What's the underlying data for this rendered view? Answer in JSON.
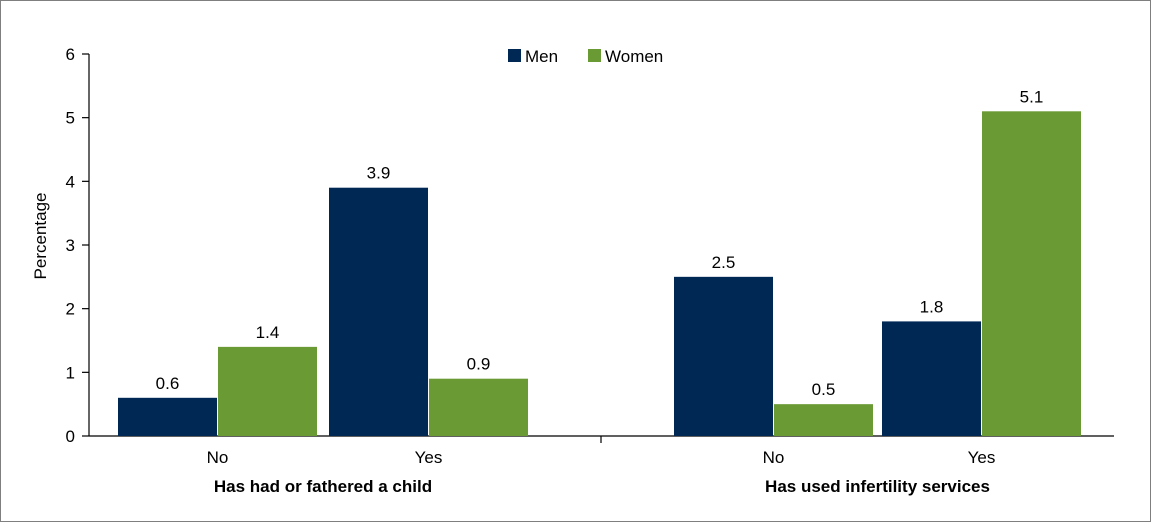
{
  "chart_data": {
    "type": "bar",
    "ylabel": "Percentage",
    "ylim": [
      0,
      6
    ],
    "yticks": [
      0,
      1,
      2,
      3,
      4,
      5,
      6
    ],
    "legend_position": "top-center",
    "groups": [
      {
        "name": "Has had or fathered a child",
        "categories": [
          "No",
          "Yes"
        ]
      },
      {
        "name": "Has used infertility services",
        "categories": [
          "No",
          "Yes"
        ]
      }
    ],
    "series": [
      {
        "name": "Men",
        "color": "#002855",
        "values": [
          0.6,
          3.9,
          2.5,
          1.8
        ],
        "labels": [
          "0.6",
          "3.9",
          "2.5",
          "1.8"
        ]
      },
      {
        "name": "Women",
        "color": "#6a9a34",
        "values": [
          1.4,
          0.9,
          0.5,
          5.1
        ],
        "labels": [
          "1.4",
          "0.9",
          "0.5",
          "5.1"
        ]
      }
    ]
  }
}
